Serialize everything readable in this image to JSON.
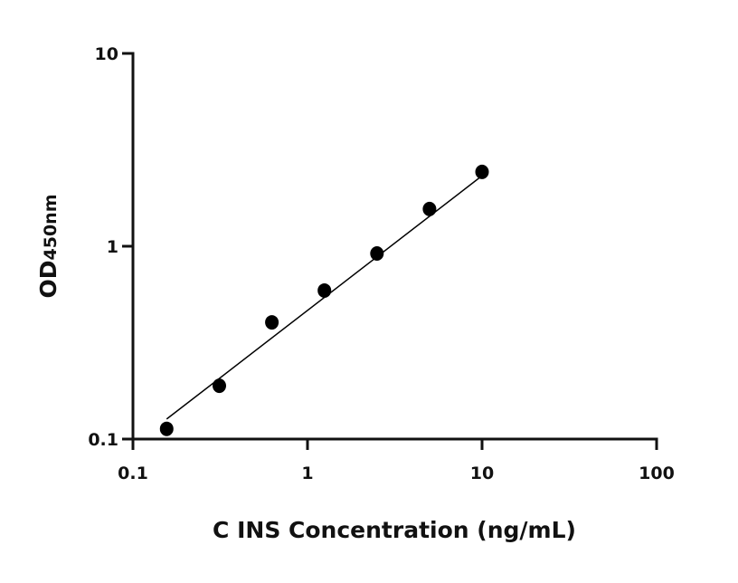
{
  "chart_data": {
    "type": "scatter",
    "xlabel": "C INS Concentration (ng/mL)",
    "ylabel": "OD",
    "ylabel_sub": "450nm",
    "xscale": "log",
    "yscale": "log",
    "xlim": [
      0.1,
      100
    ],
    "ylim": [
      0.1,
      10
    ],
    "xticks": [
      0.1,
      1,
      10,
      100
    ],
    "yticks": [
      0.1,
      1,
      10
    ],
    "color": "#000000",
    "x": [
      0.156,
      0.3125,
      0.625,
      1.25,
      2.5,
      5,
      10
    ],
    "values": [
      0.113,
      0.189,
      0.403,
      0.589,
      0.917,
      1.56,
      2.43
    ],
    "fit": {
      "x": [
        0.156,
        10
      ],
      "values": [
        0.127,
        2.32
      ]
    }
  }
}
